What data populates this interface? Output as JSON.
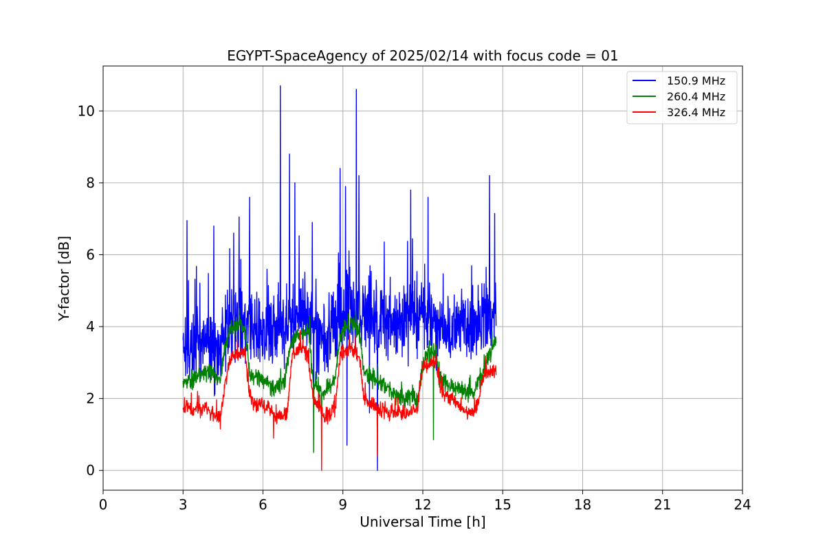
{
  "chart_data": {
    "type": "line",
    "title": "EGYPT-SpaceAgency of 2025/02/14 with focus code = 01",
    "xlabel": "Universal Time [h]",
    "ylabel": "Y-factor [dB]",
    "xlim": [
      0,
      24
    ],
    "ylim": [
      -0.55,
      11.25
    ],
    "xticks": [
      0,
      3,
      6,
      9,
      12,
      15,
      18,
      21,
      24
    ],
    "yticks": [
      0,
      2,
      4,
      6,
      8,
      10
    ],
    "grid": true,
    "legend_position": "top-right",
    "series": [
      {
        "name": "150.9 MHz",
        "color": "#0000ff",
        "base": [
          [
            3.0,
            3.6
          ],
          [
            3.3,
            3.5
          ],
          [
            3.6,
            3.4
          ],
          [
            4.0,
            3.5
          ],
          [
            4.3,
            3.3
          ],
          [
            4.6,
            3.9
          ],
          [
            5.0,
            4.2
          ],
          [
            5.3,
            4.1
          ],
          [
            5.6,
            3.9
          ],
          [
            6.0,
            3.8
          ],
          [
            6.4,
            3.9
          ],
          [
            6.8,
            4.1
          ],
          [
            7.2,
            4.3
          ],
          [
            7.6,
            4.4
          ],
          [
            8.0,
            3.6
          ],
          [
            8.4,
            3.8
          ],
          [
            8.8,
            4.1
          ],
          [
            9.2,
            4.6
          ],
          [
            9.6,
            4.5
          ],
          [
            10.0,
            4.3
          ],
          [
            10.4,
            4.1
          ],
          [
            10.8,
            4.0
          ],
          [
            11.2,
            4.2
          ],
          [
            11.6,
            4.3
          ],
          [
            12.0,
            4.3
          ],
          [
            12.4,
            4.2
          ],
          [
            12.8,
            4.0
          ],
          [
            13.2,
            3.9
          ],
          [
            13.6,
            4.0
          ],
          [
            14.0,
            4.1
          ],
          [
            14.4,
            4.3
          ],
          [
            14.75,
            4.4
          ]
        ],
        "amplitude": 1.5,
        "spikes": [
          [
            3.15,
            6.95
          ],
          [
            4.15,
            6.8
          ],
          [
            4.9,
            6.6
          ],
          [
            5.1,
            7.05
          ],
          [
            5.5,
            7.6
          ],
          [
            6.65,
            10.7
          ],
          [
            7.0,
            8.8
          ],
          [
            7.2,
            8.0
          ],
          [
            7.85,
            6.9
          ],
          [
            8.9,
            8.4
          ],
          [
            9.1,
            7.9
          ],
          [
            9.5,
            10.6
          ],
          [
            9.6,
            8.2
          ],
          [
            11.55,
            7.8
          ],
          [
            12.2,
            7.6
          ],
          [
            14.5,
            8.2
          ],
          [
            14.7,
            7.15
          ]
        ],
        "dips": [
          [
            9.15,
            0.7
          ],
          [
            10.3,
            0.0
          ],
          [
            7.9,
            1.5
          ],
          [
            10.0,
            1.6
          ]
        ]
      },
      {
        "name": "260.4 MHz",
        "color": "#008000",
        "base": [
          [
            3.0,
            2.4
          ],
          [
            3.3,
            2.5
          ],
          [
            3.7,
            2.7
          ],
          [
            4.1,
            2.75
          ],
          [
            4.4,
            2.5
          ],
          [
            4.6,
            3.5
          ],
          [
            4.8,
            3.95
          ],
          [
            5.2,
            4.1
          ],
          [
            5.35,
            3.8
          ],
          [
            5.5,
            2.7
          ],
          [
            6.0,
            2.5
          ],
          [
            6.4,
            2.3
          ],
          [
            6.8,
            2.4
          ],
          [
            7.0,
            3.4
          ],
          [
            7.3,
            3.75
          ],
          [
            7.7,
            3.9
          ],
          [
            7.9,
            2.4
          ],
          [
            8.3,
            2.1
          ],
          [
            8.7,
            2.5
          ],
          [
            8.9,
            3.8
          ],
          [
            9.3,
            4.1
          ],
          [
            9.6,
            3.9
          ],
          [
            9.8,
            2.7
          ],
          [
            10.3,
            2.5
          ],
          [
            10.8,
            2.2
          ],
          [
            11.3,
            2.0
          ],
          [
            11.8,
            2.0
          ],
          [
            12.1,
            3.2
          ],
          [
            12.5,
            3.3
          ],
          [
            12.6,
            2.5
          ],
          [
            13.0,
            2.4
          ],
          [
            13.5,
            2.2
          ],
          [
            13.9,
            2.1
          ],
          [
            14.3,
            2.8
          ],
          [
            14.75,
            3.6
          ]
        ],
        "amplitude": 0.35,
        "spikes": [
          [
            5.1,
            4.5
          ],
          [
            7.75,
            4.3
          ],
          [
            9.2,
            4.35
          ]
        ],
        "dips": [
          [
            7.9,
            0.5
          ],
          [
            12.4,
            0.85
          ],
          [
            8.2,
            1.2
          ]
        ]
      },
      {
        "name": "326.4 MHz",
        "color": "#ff0000",
        "base": [
          [
            3.0,
            1.75
          ],
          [
            3.4,
            1.7
          ],
          [
            3.8,
            1.75
          ],
          [
            4.1,
            1.6
          ],
          [
            4.4,
            1.5
          ],
          [
            4.6,
            2.5
          ],
          [
            4.8,
            3.15
          ],
          [
            5.3,
            3.3
          ],
          [
            5.5,
            2.2
          ],
          [
            5.6,
            1.85
          ],
          [
            6.2,
            1.8
          ],
          [
            6.5,
            1.5
          ],
          [
            6.9,
            1.55
          ],
          [
            7.1,
            3.2
          ],
          [
            7.5,
            3.45
          ],
          [
            7.7,
            3.1
          ],
          [
            7.9,
            2.0
          ],
          [
            8.3,
            1.5
          ],
          [
            8.7,
            1.7
          ],
          [
            8.9,
            3.2
          ],
          [
            9.3,
            3.4
          ],
          [
            9.6,
            3.2
          ],
          [
            9.8,
            2.0
          ],
          [
            10.3,
            1.7
          ],
          [
            10.8,
            1.6
          ],
          [
            11.3,
            1.6
          ],
          [
            11.8,
            1.7
          ],
          [
            12.0,
            2.9
          ],
          [
            12.5,
            3.0
          ],
          [
            12.7,
            2.2
          ],
          [
            13.1,
            2.0
          ],
          [
            13.6,
            1.6
          ],
          [
            14.0,
            1.7
          ],
          [
            14.3,
            2.7
          ],
          [
            14.75,
            2.8
          ]
        ],
        "amplitude": 0.3,
        "spikes": [
          [
            3.55,
            2.2
          ],
          [
            7.4,
            3.9
          ],
          [
            9.0,
            3.5
          ]
        ],
        "dips": [
          [
            8.2,
            0.0
          ],
          [
            10.3,
            0.4
          ],
          [
            6.4,
            0.9
          ],
          [
            4.4,
            1.15
          ]
        ]
      }
    ]
  }
}
